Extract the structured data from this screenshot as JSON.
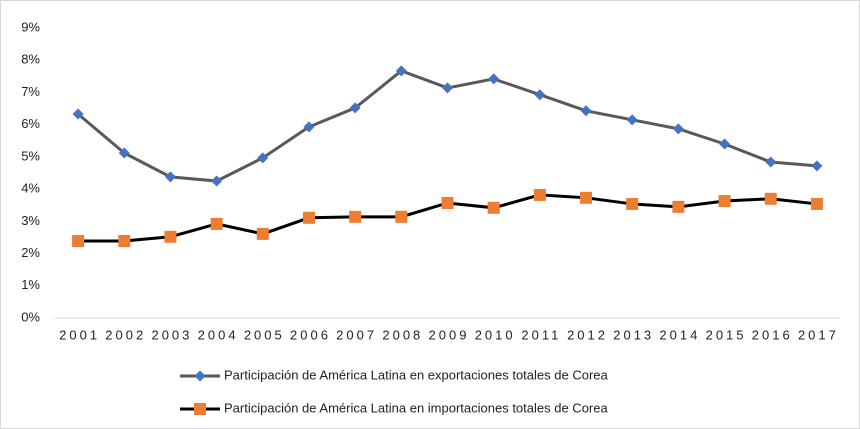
{
  "chart_data": {
    "type": "line",
    "categories": [
      "2001",
      "2002",
      "2003",
      "2004",
      "2005",
      "2006",
      "2007",
      "2008",
      "2009",
      "2010",
      "2011",
      "2012",
      "2013",
      "2014",
      "2015",
      "2016",
      "2017"
    ],
    "series": [
      {
        "name": "Participación de América Latina en exportaciones totales de Corea",
        "color": "#595959",
        "marker_color": "#4472c4",
        "marker": "diamond",
        "values": [
          6.33,
          5.12,
          4.38,
          4.25,
          4.97,
          5.93,
          6.52,
          7.67,
          7.14,
          7.42,
          6.93,
          6.43,
          6.15,
          5.87,
          5.4,
          4.84,
          4.72
        ]
      },
      {
        "name": "Participación de América Latina en importaciones totales de Corea",
        "color": "#000000",
        "marker_color": "#ed7d31",
        "marker": "square",
        "values": [
          2.39,
          2.39,
          2.52,
          2.92,
          2.61,
          3.11,
          3.14,
          3.14,
          3.57,
          3.42,
          3.82,
          3.73,
          3.54,
          3.45,
          3.63,
          3.7,
          3.54
        ]
      }
    ],
    "ylim": [
      0,
      9
    ],
    "yticks": [
      {
        "value": 0,
        "label": "0%"
      },
      {
        "value": 1,
        "label": "1%"
      },
      {
        "value": 2,
        "label": "2%"
      },
      {
        "value": 3,
        "label": "3%"
      },
      {
        "value": 4,
        "label": "4%"
      },
      {
        "value": 5,
        "label": "5%"
      },
      {
        "value": 6,
        "label": "6%"
      },
      {
        "value": 7,
        "label": "7%"
      },
      {
        "value": 8,
        "label": "8%"
      },
      {
        "value": 9,
        "label": "9%"
      }
    ],
    "grid": false,
    "legend": "bottom"
  }
}
